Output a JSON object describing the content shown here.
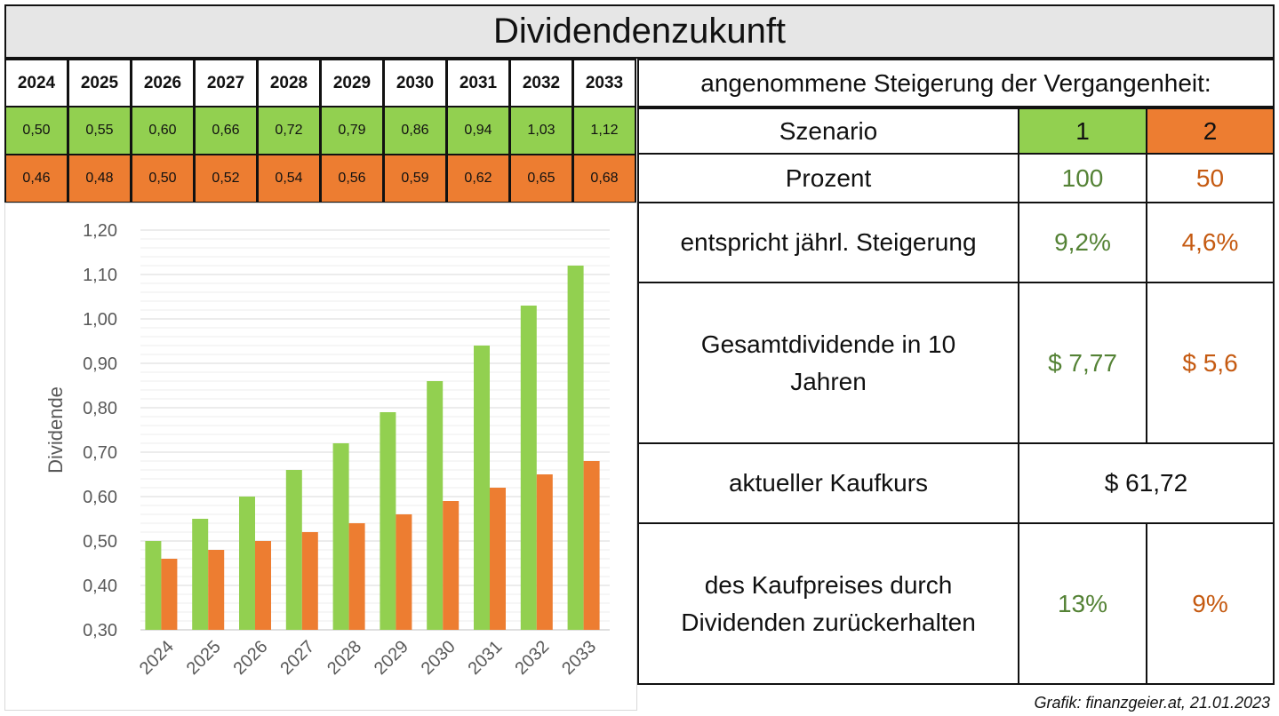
{
  "title": "Dividendenzukunft",
  "years": [
    "2024",
    "2025",
    "2026",
    "2027",
    "2028",
    "2029",
    "2030",
    "2031",
    "2032",
    "2033"
  ],
  "row1": [
    "0,50",
    "0,55",
    "0,60",
    "0,66",
    "0,72",
    "0,79",
    "0,86",
    "0,94",
    "1,03",
    "1,12"
  ],
  "row2": [
    "0,46",
    "0,48",
    "0,50",
    "0,52",
    "0,54",
    "0,56",
    "0,59",
    "0,62",
    "0,65",
    "0,68"
  ],
  "table": {
    "header": "angenommene Steigerung der Vergangenheit:",
    "szenario_label": "Szenario",
    "szenario_1": "1",
    "szenario_2": "2",
    "prozent_label": "Prozent",
    "prozent_1": "100",
    "prozent_2": "50",
    "steigerung_label": "entspricht jährl. Steigerung",
    "steigerung_1": "9,2%",
    "steigerung_2": "4,6%",
    "gesamt_label": "Gesamtdividende in 10 Jahren",
    "gesamt_1": "$ 7,77",
    "gesamt_2": "$ 5,6",
    "kurs_label": "aktueller Kaufkurs",
    "kurs_value": "$ 61,72",
    "rueck_label": "des Kaufpreises durch Dividenden zurückerhalten",
    "rueck_1": "13%",
    "rueck_2": "9%"
  },
  "footer": "Grafik: finanzgeier.at, 21.01.2023",
  "colors": {
    "green": "#92d050",
    "orange": "#ed7d31",
    "green_text": "#548235",
    "orange_text": "#c55a11"
  },
  "chart_data": {
    "type": "bar",
    "categories": [
      "2024",
      "2025",
      "2026",
      "2027",
      "2028",
      "2029",
      "2030",
      "2031",
      "2032",
      "2033"
    ],
    "series": [
      {
        "values": [
          0.5,
          0.55,
          0.6,
          0.66,
          0.72,
          0.79,
          0.86,
          0.94,
          1.03,
          1.12
        ],
        "color": "#92d050"
      },
      {
        "values": [
          0.46,
          0.48,
          0.5,
          0.52,
          0.54,
          0.56,
          0.59,
          0.62,
          0.65,
          0.68
        ],
        "color": "#ed7d31"
      }
    ],
    "ylabel": "Dividende",
    "ylim": [
      0.3,
      1.2
    ],
    "yticks": [
      "0,30",
      "0,40",
      "0,50",
      "0,60",
      "0,70",
      "0,80",
      "0,90",
      "1,00",
      "1,10",
      "1,20"
    ],
    "grid": true
  }
}
